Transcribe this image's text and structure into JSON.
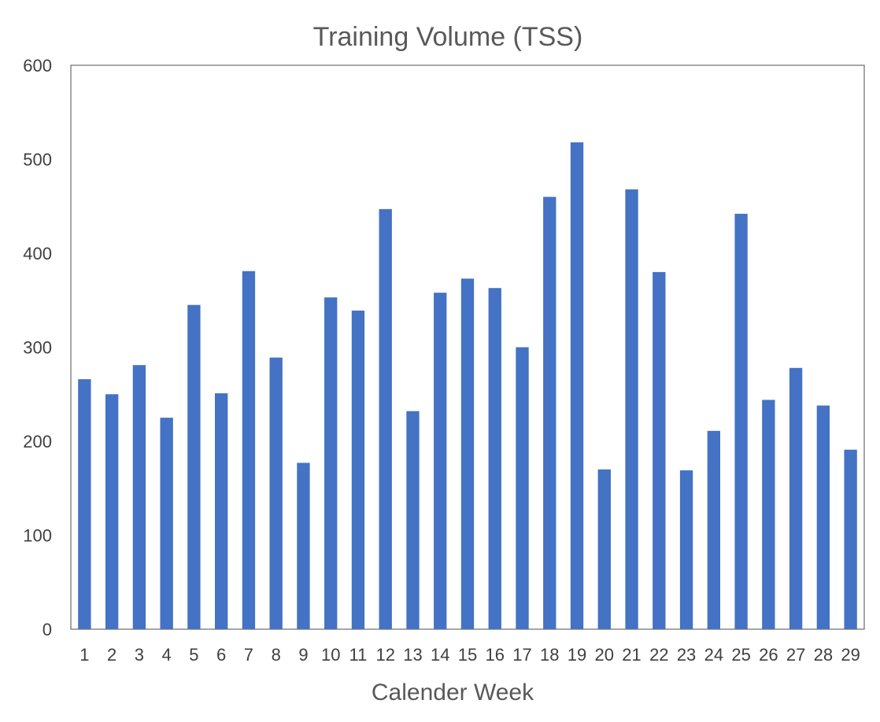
{
  "chart_data": {
    "type": "bar",
    "title": "Training Volume (TSS)",
    "xlabel": "Calender Week",
    "ylabel": "",
    "ylim": [
      0,
      600
    ],
    "yticks": [
      0,
      100,
      200,
      300,
      400,
      500,
      600
    ],
    "grid": false,
    "legend": "none",
    "bar_color": "#4472C4",
    "categories": [
      "1",
      "2",
      "3",
      "4",
      "5",
      "6",
      "7",
      "8",
      "9",
      "10",
      "11",
      "12",
      "13",
      "14",
      "15",
      "16",
      "17",
      "18",
      "19",
      "20",
      "21",
      "22",
      "23",
      "24",
      "25",
      "26",
      "27",
      "28",
      "29"
    ],
    "values": [
      266,
      250,
      281,
      225,
      345,
      251,
      381,
      289,
      177,
      353,
      339,
      447,
      232,
      358,
      373,
      363,
      300,
      460,
      518,
      170,
      468,
      380,
      169,
      211,
      442,
      244,
      278,
      238,
      191
    ]
  }
}
